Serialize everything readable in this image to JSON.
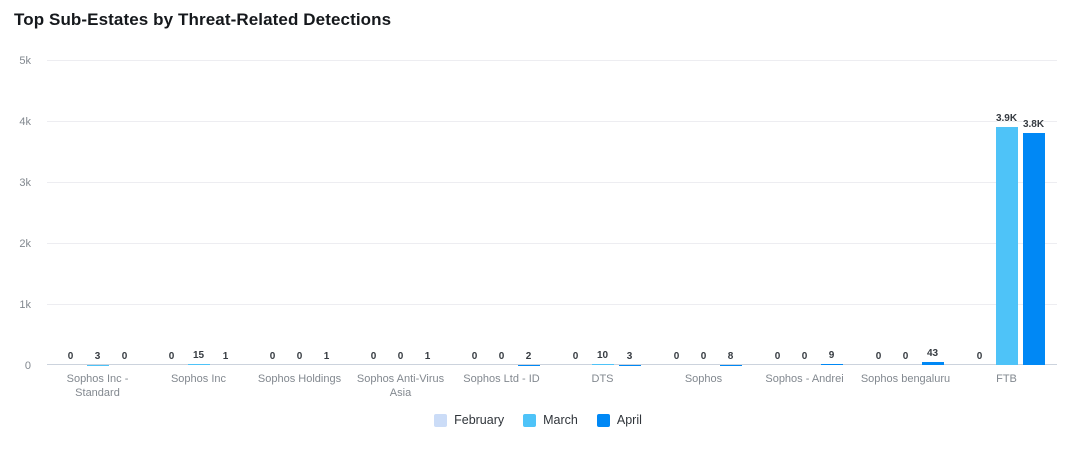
{
  "chart_data": {
    "type": "bar",
    "title": "Top Sub-Estates by Threat-Related Detections",
    "categories": [
      "Sophos Inc - Standard",
      "Sophos Inc",
      "Sophos Holdings",
      "Sophos Anti-Virus Asia",
      "Sophos Ltd - ID",
      "DTS",
      "Sophos",
      "Sophos - Andrei",
      "Sophos bengaluru",
      "FTB"
    ],
    "series": [
      {
        "name": "February",
        "color": "#cbdcf7",
        "values": [
          0,
          0,
          0,
          0,
          0,
          0,
          0,
          0,
          0,
          0
        ],
        "labels": [
          "0",
          "0",
          "0",
          "0",
          "0",
          "0",
          "0",
          "0",
          "0",
          "0"
        ]
      },
      {
        "name": "March",
        "color": "#4ec3f8",
        "values": [
          3,
          15,
          0,
          0,
          0,
          10,
          0,
          0,
          0,
          3900
        ],
        "labels": [
          "3",
          "15",
          "0",
          "0",
          "0",
          "10",
          "0",
          "0",
          "0",
          "3.9K"
        ]
      },
      {
        "name": "April",
        "color": "#0088f5",
        "values": [
          0,
          1,
          1,
          1,
          2,
          3,
          8,
          9,
          43,
          3800
        ],
        "labels": [
          "0",
          "1",
          "1",
          "1",
          "2",
          "3",
          "8",
          "9",
          "43",
          "3.8K"
        ]
      }
    ],
    "y_ticks": [
      "0",
      "1k",
      "2k",
      "3k",
      "4k",
      "5k"
    ],
    "ylim": [
      0,
      5000
    ],
    "grid": true,
    "legend_position": "bottom",
    "xlabel": "",
    "ylabel": ""
  }
}
